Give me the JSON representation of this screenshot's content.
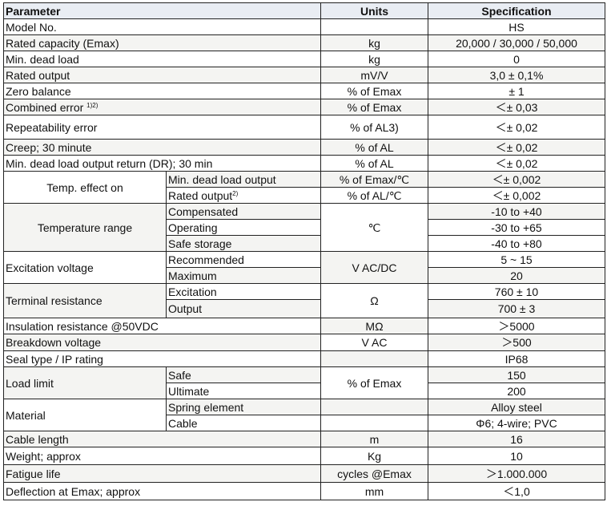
{
  "header": {
    "parameter": "Parameter",
    "units": "Units",
    "specification": "Specification"
  },
  "rows": [
    {
      "h": 20,
      "cells": [
        {
          "t": "Model No.",
          "cs": 2,
          "a": "l"
        },
        {
          "t": ""
        },
        {
          "t": "HS"
        }
      ]
    },
    {
      "h": 20,
      "sh": 1,
      "cells": [
        {
          "t": "Rated capacity (Emax)",
          "cs": 2,
          "a": "l"
        },
        {
          "t": "kg"
        },
        {
          "t": "20,000 / 30,000 / 50,000"
        }
      ]
    },
    {
      "h": 20,
      "cells": [
        {
          "t": "Min. dead load",
          "cs": 2,
          "a": "l"
        },
        {
          "t": "kg"
        },
        {
          "t": "0"
        }
      ]
    },
    {
      "h": 20,
      "sh": 1,
      "cells": [
        {
          "t": "Rated output",
          "cs": 2,
          "a": "l"
        },
        {
          "t": "mV/V"
        },
        {
          "t": "3,0 ± 0,1%"
        }
      ]
    },
    {
      "h": 20,
      "cells": [
        {
          "t": "Zero balance",
          "cs": 2,
          "a": "l"
        },
        {
          "t": "% of Emax"
        },
        {
          "t": "± 1"
        }
      ]
    },
    {
      "h": 20,
      "sh": 1,
      "cells": [
        {
          "t": "Combined error ",
          "sup": "1)2)",
          "cs": 2,
          "a": "l"
        },
        {
          "t": "% of Emax"
        },
        {
          "t": "＜± 0,03"
        }
      ]
    },
    {
      "h": 30,
      "cells": [
        {
          "t": "Repeatability error",
          "cs": 2,
          "a": "l"
        },
        {
          "t": "% of AL3)"
        },
        {
          "t": "＜± 0,02"
        }
      ]
    },
    {
      "h": 20,
      "sh": 1,
      "cells": [
        {
          "t": "Creep; 30 minute",
          "cs": 2,
          "a": "l"
        },
        {
          "t": "% of AL"
        },
        {
          "t": "＜± 0,02"
        }
      ]
    },
    {
      "h": 20,
      "cells": [
        {
          "t": "Min. dead load output return (DR); 30 min",
          "cs": 2,
          "a": "l"
        },
        {
          "t": "% of AL"
        },
        {
          "t": "＜± 0,02"
        }
      ]
    },
    {
      "h": 20,
      "sh": 1,
      "cells": [
        {
          "t": "Temp. effect on",
          "rs": 2,
          "w": 1
        },
        {
          "t": "Min. dead load output",
          "a": "l"
        },
        {
          "t": "% of Emax/℃"
        },
        {
          "t": "＜± 0,002"
        }
      ]
    },
    {
      "h": 20,
      "cells": [
        {
          "t": "Rated output",
          "sup": "2)",
          "a": "l"
        },
        {
          "t": "% of AL/℃"
        },
        {
          "t": "＜± 0,002"
        }
      ]
    },
    {
      "h": 20,
      "sh": 1,
      "cells": [
        {
          "t": "Temperature range",
          "rs": 3
        },
        {
          "t": "Compensated",
          "a": "l"
        },
        {
          "t": "℃",
          "rs": 3,
          "w": 1
        },
        {
          "t": "-10 to +40"
        }
      ]
    },
    {
      "h": 20,
      "cells": [
        {
          "t": "Operating",
          "a": "l"
        },
        {
          "t": "-30 to +65"
        }
      ]
    },
    {
      "h": 20,
      "sh": 1,
      "cells": [
        {
          "t": "Safe storage",
          "a": "l"
        },
        {
          "t": "-40 to +80",
          "w": 1
        }
      ]
    },
    {
      "h": 20,
      "cells": [
        {
          "t": "Excitation voltage",
          "rs": 2,
          "a": "l"
        },
        {
          "t": "Recommended",
          "a": "l"
        },
        {
          "t": "V AC/DC",
          "rs": 2,
          "s": 1
        },
        {
          "t": "5 ~ 15"
        }
      ]
    },
    {
      "h": 20,
      "sh": 1,
      "cells": [
        {
          "t": "Maximum",
          "a": "l"
        },
        {
          "t": "20"
        }
      ]
    },
    {
      "h": 20,
      "cells": [
        {
          "t": "Terminal resistance",
          "rs": 2,
          "a": "l",
          "s": 1
        },
        {
          "t": "Excitation",
          "a": "l"
        },
        {
          "t": "Ω",
          "rs": 2
        },
        {
          "t": "760 ± 10"
        }
      ]
    },
    {
      "h": 23,
      "sh": 1,
      "cells": [
        {
          "t": "Output",
          "a": "l"
        },
        {
          "t": "700 ± 3"
        }
      ]
    },
    {
      "h": 20,
      "cells": [
        {
          "t": "Insulation resistance @50VDC",
          "cs": 2,
          "a": "l"
        },
        {
          "t": "MΩ",
          "s": 1
        },
        {
          "t": "＞5000"
        }
      ]
    },
    {
      "h": 21,
      "sh": 1,
      "cells": [
        {
          "t": "Breakdown voltage",
          "cs": 2,
          "a": "l"
        },
        {
          "t": "V AC",
          "w": 1
        },
        {
          "t": "＞500"
        }
      ]
    },
    {
      "h": 20,
      "cells": [
        {
          "t": "Seal type / IP rating",
          "cs": 2,
          "a": "l"
        },
        {
          "t": "",
          "s": 1
        },
        {
          "t": "IP68"
        }
      ]
    },
    {
      "h": 20,
      "sh": 1,
      "cells": [
        {
          "t": "Load limit",
          "rs": 2,
          "a": "l"
        },
        {
          "t": "Safe",
          "a": "l"
        },
        {
          "t": "% of Emax",
          "rs": 2,
          "w": 1
        },
        {
          "t": "150"
        }
      ]
    },
    {
      "h": 20,
      "cells": [
        {
          "t": "Ultimate",
          "a": "l"
        },
        {
          "t": "200"
        }
      ]
    },
    {
      "h": 20,
      "sh": 1,
      "cells": [
        {
          "t": "Material",
          "rs": 2,
          "a": "l",
          "w": 1
        },
        {
          "t": "Spring element",
          "a": "l"
        },
        {
          "t": ""
        },
        {
          "t": "Alloy steel"
        }
      ]
    },
    {
      "h": 20,
      "cells": [
        {
          "t": "Cable",
          "a": "l"
        },
        {
          "t": ""
        },
        {
          "t": "Φ6; 4-wire; PVC"
        }
      ]
    },
    {
      "h": 20,
      "sh": 1,
      "cells": [
        {
          "t": "Cable length",
          "cs": 2,
          "a": "l"
        },
        {
          "t": "m"
        },
        {
          "t": "16"
        }
      ]
    },
    {
      "h": 22,
      "cells": [
        {
          "t": "Weight; approx",
          "cs": 2,
          "a": "l"
        },
        {
          "t": "Kg"
        },
        {
          "t": "10"
        }
      ]
    },
    {
      "h": 22,
      "sh": 1,
      "cells": [
        {
          "t": "Fatigue life",
          "cs": 2,
          "a": "l"
        },
        {
          "t": "cycles @Emax"
        },
        {
          "t": "＞1.000.000"
        }
      ]
    },
    {
      "h": 22,
      "cells": [
        {
          "t": "Deflection at Emax; approx",
          "cs": 2,
          "a": "l"
        },
        {
          "t": "mm"
        },
        {
          "t": "＜1,0"
        }
      ]
    }
  ]
}
